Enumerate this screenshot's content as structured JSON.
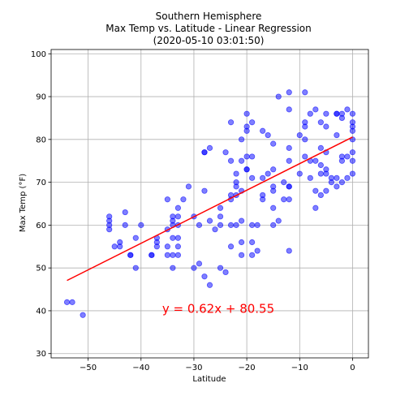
{
  "chart_data": {
    "type": "scatter",
    "title": [
      "Southern Hemisphere",
      "Max Temp vs. Latitude - Linear Regression",
      "(2020-05-10 03:01:50)"
    ],
    "xlabel": "Latitude",
    "ylabel": "Max Temp (°F)",
    "xlim": [
      -57,
      3
    ],
    "ylim": [
      29,
      101
    ],
    "xticks": [
      -50,
      -40,
      -30,
      -20,
      -10,
      0
    ],
    "yticks": [
      30,
      40,
      50,
      60,
      70,
      80,
      90,
      100
    ],
    "grid": true,
    "point_color": "#0000ff",
    "point_alpha": 0.5,
    "regression": {
      "slope": 0.62,
      "intercept": 80.55,
      "x_range": [
        -54,
        0
      ],
      "color": "#ff0000",
      "equation": "y = 0.62x + 80.55",
      "equation_pos": [
        -36,
        39.5
      ]
    },
    "points": [
      [
        -54,
        42
      ],
      [
        -53,
        42
      ],
      [
        -51,
        39
      ],
      [
        -46,
        62
      ],
      [
        -46,
        61
      ],
      [
        -46,
        60
      ],
      [
        -46,
        59
      ],
      [
        -45,
        55
      ],
      [
        -44,
        55
      ],
      [
        -44,
        56
      ],
      [
        -43,
        63
      ],
      [
        -43,
        60
      ],
      [
        -42,
        53
      ],
      [
        -42,
        53
      ],
      [
        -41,
        57
      ],
      [
        -41,
        50
      ],
      [
        -40,
        60
      ],
      [
        -38,
        53
      ],
      [
        -38,
        53
      ],
      [
        -37,
        57
      ],
      [
        -37,
        56
      ],
      [
        -37,
        55
      ],
      [
        -35,
        66
      ],
      [
        -35,
        59
      ],
      [
        -35,
        55
      ],
      [
        -35,
        53
      ],
      [
        -34,
        62
      ],
      [
        -34,
        61
      ],
      [
        -34,
        60
      ],
      [
        -34,
        57
      ],
      [
        -34,
        53
      ],
      [
        -34,
        50
      ],
      [
        -33,
        64
      ],
      [
        -33,
        62
      ],
      [
        -33,
        60
      ],
      [
        -33,
        57
      ],
      [
        -33,
        55
      ],
      [
        -33,
        53
      ],
      [
        -32,
        66
      ],
      [
        -31,
        69
      ],
      [
        -30,
        62
      ],
      [
        -30,
        50
      ],
      [
        -29,
        60
      ],
      [
        -29,
        51
      ],
      [
        -28,
        77
      ],
      [
        -28,
        77
      ],
      [
        -28,
        68
      ],
      [
        -28,
        48
      ],
      [
        -27,
        78
      ],
      [
        -27,
        61
      ],
      [
        -27,
        46
      ],
      [
        -26,
        59
      ],
      [
        -25,
        64
      ],
      [
        -25,
        62
      ],
      [
        -25,
        60
      ],
      [
        -25,
        50
      ],
      [
        -24,
        77
      ],
      [
        -24,
        49
      ],
      [
        -23,
        84
      ],
      [
        -23,
        75
      ],
      [
        -23,
        67
      ],
      [
        -23,
        66
      ],
      [
        -23,
        60
      ],
      [
        -23,
        55
      ],
      [
        -22,
        72
      ],
      [
        -22,
        70
      ],
      [
        -22,
        69
      ],
      [
        -22,
        67
      ],
      [
        -22,
        60
      ],
      [
        -21,
        80
      ],
      [
        -21,
        75
      ],
      [
        -21,
        68
      ],
      [
        -21,
        61
      ],
      [
        -21,
        56
      ],
      [
        -21,
        53
      ],
      [
        -20,
        86
      ],
      [
        -20,
        83
      ],
      [
        -20,
        82
      ],
      [
        -20,
        76
      ],
      [
        -20,
        73
      ],
      [
        -20,
        73
      ],
      [
        -19,
        84
      ],
      [
        -19,
        76
      ],
      [
        -19,
        71
      ],
      [
        -19,
        60
      ],
      [
        -19,
        56
      ],
      [
        -19,
        53
      ],
      [
        -18,
        60
      ],
      [
        -18,
        54
      ],
      [
        -17,
        82
      ],
      [
        -17,
        71
      ],
      [
        -17,
        67
      ],
      [
        -17,
        66
      ],
      [
        -16,
        81
      ],
      [
        -16,
        72
      ],
      [
        -15,
        79
      ],
      [
        -15,
        73
      ],
      [
        -15,
        69
      ],
      [
        -15,
        68
      ],
      [
        -15,
        64
      ],
      [
        -15,
        60
      ],
      [
        -14,
        90
      ],
      [
        -14,
        61
      ],
      [
        -13,
        70
      ],
      [
        -13,
        66
      ],
      [
        -12,
        91
      ],
      [
        -12,
        87
      ],
      [
        -12,
        78
      ],
      [
        -12,
        75
      ],
      [
        -12,
        69
      ],
      [
        -12,
        69
      ],
      [
        -12,
        66
      ],
      [
        -12,
        54
      ],
      [
        -10,
        81
      ],
      [
        -10,
        72
      ],
      [
        -9,
        91
      ],
      [
        -9,
        84
      ],
      [
        -9,
        83
      ],
      [
        -9,
        80
      ],
      [
        -9,
        76
      ],
      [
        -8,
        86
      ],
      [
        -8,
        75
      ],
      [
        -8,
        71
      ],
      [
        -7,
        87
      ],
      [
        -7,
        75
      ],
      [
        -7,
        68
      ],
      [
        -7,
        64
      ],
      [
        -6,
        84
      ],
      [
        -6,
        78
      ],
      [
        -6,
        74
      ],
      [
        -6,
        72
      ],
      [
        -6,
        67
      ],
      [
        -5,
        86
      ],
      [
        -5,
        83
      ],
      [
        -5,
        77
      ],
      [
        -5,
        73
      ],
      [
        -5,
        72
      ],
      [
        -5,
        68
      ],
      [
        -4,
        71
      ],
      [
        -4,
        70
      ],
      [
        -3,
        86
      ],
      [
        -3,
        86
      ],
      [
        -3,
        81
      ],
      [
        -3,
        71
      ],
      [
        -3,
        69
      ],
      [
        -2,
        86
      ],
      [
        -2,
        85
      ],
      [
        -2,
        76
      ],
      [
        -2,
        75
      ],
      [
        -2,
        70
      ],
      [
        -1,
        87
      ],
      [
        -1,
        76
      ],
      [
        -1,
        71
      ],
      [
        0,
        86
      ],
      [
        0,
        84
      ],
      [
        0,
        83
      ],
      [
        0,
        82
      ],
      [
        0,
        80
      ],
      [
        0,
        77
      ],
      [
        0,
        75
      ],
      [
        0,
        72
      ]
    ]
  }
}
